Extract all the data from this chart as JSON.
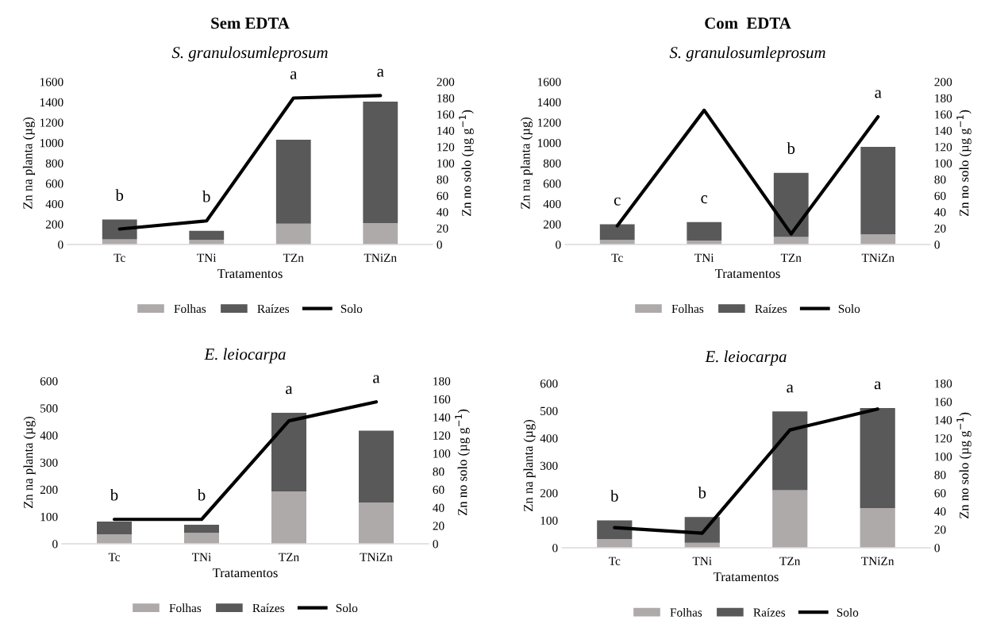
{
  "chart_data": [
    {
      "type": "bar",
      "stacked": true,
      "title": "Sem EDTA",
      "subtitle": "S. granulosumleprosum",
      "xlabel": "Tratamentos",
      "ylabel": "Zn na planta (µg)",
      "y2label": "Zn no solo (µg g$^{−1}$)",
      "categories": [
        "Tc",
        "TNi",
        "TZn",
        "TNiZn"
      ],
      "series": [
        {
          "name": "Folhas",
          "color": "#aeaaaa",
          "values": [
            50,
            45,
            205,
            210
          ]
        },
        {
          "name": "Raízes",
          "color": "#595959",
          "values": [
            195,
            90,
            825,
            1195
          ]
        },
        {
          "name": "Solo",
          "color": "#000000",
          "type": "line",
          "axis": "y2",
          "values": [
            19,
            29,
            180,
            183
          ]
        }
      ],
      "ylim": [
        0,
        1600
      ],
      "yticks": [
        0,
        200,
        400,
        600,
        800,
        1000,
        1200,
        1400,
        1600
      ],
      "y2lim": [
        0,
        200
      ],
      "y2ticks": [
        0,
        20,
        40,
        60,
        80,
        100,
        120,
        140,
        160,
        180,
        200
      ],
      "annotations": [
        "b",
        "b",
        "a",
        "a"
      ],
      "legend": "bottom",
      "grid": false,
      "marker": "none",
      "line_style": "solid"
    },
    {
      "type": "bar",
      "stacked": true,
      "title": "Com  EDTA",
      "subtitle": "S. granulosumleprosum",
      "xlabel": "Tratamentos",
      "ylabel": "Zn na planta (µg)",
      "y2label": "Zn no solo (µg g$^{−1}$)",
      "categories": [
        "Tc",
        "TNi",
        "TZn",
        "TNiZn"
      ],
      "series": [
        {
          "name": "Folhas",
          "color": "#aeaaaa",
          "values": [
            45,
            40,
            75,
            100
          ]
        },
        {
          "name": "Raízes",
          "color": "#595959",
          "values": [
            155,
            180,
            630,
            860
          ]
        },
        {
          "name": "Solo",
          "color": "#000000",
          "type": "line",
          "axis": "y2",
          "values": [
            23,
            165,
            13,
            157
          ]
        }
      ],
      "ylim": [
        0,
        1600
      ],
      "yticks": [
        0,
        200,
        400,
        600,
        800,
        1000,
        1200,
        1400,
        1600
      ],
      "y2lim": [
        0,
        200
      ],
      "y2ticks": [
        0,
        20,
        40,
        60,
        80,
        100,
        120,
        140,
        160,
        180,
        200
      ],
      "annotations": [
        "c",
        "c",
        "b",
        "a"
      ],
      "legend": "bottom",
      "grid": false,
      "marker": "none",
      "line_style": "solid"
    },
    {
      "type": "bar",
      "stacked": true,
      "title": "E. leiocarpa",
      "xlabel": "Tratamentos",
      "ylabel": "Zn na planta (µg)",
      "y2label": "Zn no solo (µg g$^{−1}$)",
      "categories": [
        "Tc",
        "TNi",
        "TZn",
        "TNiZn"
      ],
      "series": [
        {
          "name": "Folhas",
          "color": "#aeaaaa",
          "values": [
            35,
            40,
            193,
            152
          ]
        },
        {
          "name": "Raízes",
          "color": "#595959",
          "values": [
            47,
            30,
            290,
            265
          ]
        },
        {
          "name": "Solo",
          "color": "#000000",
          "type": "line",
          "axis": "y2",
          "values": [
            27,
            27,
            136,
            157
          ]
        }
      ],
      "ylim": [
        0,
        600
      ],
      "yticks": [
        0,
        100,
        200,
        300,
        400,
        500,
        600
      ],
      "y2lim": [
        0,
        180
      ],
      "y2ticks": [
        0,
        20,
        40,
        60,
        80,
        100,
        120,
        140,
        160,
        180
      ],
      "annotations": [
        "b",
        "b",
        "a",
        "a"
      ],
      "legend": "bottom",
      "grid": false,
      "marker": "none",
      "line_style": "solid"
    },
    {
      "type": "bar",
      "stacked": true,
      "title": "E. leiocarpa",
      "xlabel": "Tratamentos",
      "ylabel": "Zn na planta (µg)",
      "y2label": "Zn no solo (µg g$^{−1}$)",
      "categories": [
        "Tc",
        "TNi",
        "TZn",
        "TNiZn"
      ],
      "series": [
        {
          "name": "Folhas",
          "color": "#aeaaaa",
          "values": [
            32,
            18,
            210,
            145
          ]
        },
        {
          "name": "Raízes",
          "color": "#595959",
          "values": [
            68,
            94,
            288,
            365
          ]
        },
        {
          "name": "Solo",
          "color": "#000000",
          "type": "line",
          "axis": "y2",
          "values": [
            22,
            16,
            129,
            152
          ]
        }
      ],
      "ylim": [
        0,
        600
      ],
      "yticks": [
        0,
        100,
        200,
        300,
        400,
        500,
        600
      ],
      "y2lim": [
        0,
        180
      ],
      "y2ticks": [
        0,
        20,
        40,
        60,
        80,
        100,
        120,
        140,
        160,
        180
      ],
      "annotations": [
        "b",
        "b",
        "a",
        "a"
      ],
      "legend": "bottom",
      "grid": false,
      "marker": "none",
      "line_style": "solid"
    }
  ]
}
